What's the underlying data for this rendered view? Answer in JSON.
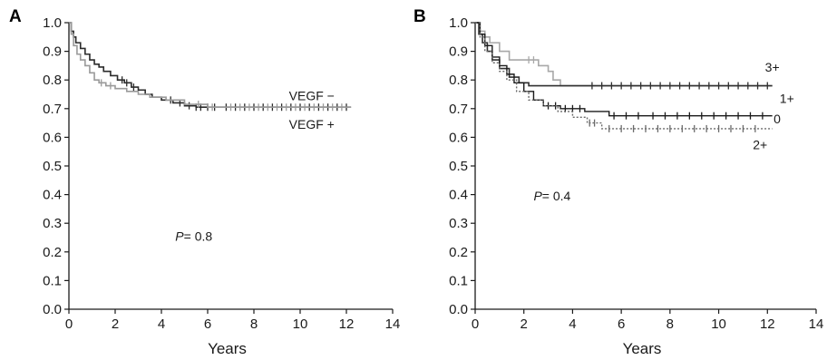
{
  "chart_data": [
    {
      "type": "line",
      "panel_label": "A",
      "xlabel": "Years",
      "ylabel": "",
      "xlim": [
        0,
        14
      ],
      "ylim": [
        0,
        1.0
      ],
      "xticks": [
        0,
        2,
        4,
        6,
        8,
        10,
        12,
        14
      ],
      "yticks": [
        0.0,
        0.1,
        0.2,
        0.3,
        0.4,
        0.5,
        0.6,
        0.7,
        0.8,
        0.9,
        1.0
      ],
      "ytick_labels": [
        "0.0",
        "0.1",
        "0.2",
        "0.3",
        "0.4",
        "0.5",
        "0.6",
        "0.7",
        "0.8",
        "0.9",
        "1.0"
      ],
      "grid": false,
      "annotation": {
        "p_label": "P",
        "p_value": "= 0.8",
        "x": 4.6,
        "y": 0.255
      },
      "series": [
        {
          "name": "VEGF −",
          "color": "#2b2b2b",
          "width": 1.6,
          "dash": "",
          "label_at": [
            10.5,
            0.745
          ],
          "steps": [
            [
              0,
              1.0
            ],
            [
              0.1,
              0.97
            ],
            [
              0.2,
              0.95
            ],
            [
              0.3,
              0.93
            ],
            [
              0.5,
              0.91
            ],
            [
              0.7,
              0.89
            ],
            [
              0.9,
              0.87
            ],
            [
              1.1,
              0.855
            ],
            [
              1.3,
              0.845
            ],
            [
              1.5,
              0.83
            ],
            [
              1.8,
              0.815
            ],
            [
              2.1,
              0.8
            ],
            [
              2.4,
              0.79
            ],
            [
              2.7,
              0.775
            ],
            [
              3.0,
              0.765
            ],
            [
              3.3,
              0.75
            ],
            [
              3.6,
              0.74
            ],
            [
              4.0,
              0.73
            ],
            [
              4.5,
              0.72
            ],
            [
              5.0,
              0.71
            ],
            [
              5.5,
              0.705
            ],
            [
              12.2,
              0.705
            ]
          ],
          "censor_x": [
            2.3,
            2.5,
            2.8,
            4.4,
            4.8,
            5.2,
            5.5,
            5.7,
            6.0,
            6.3,
            6.8,
            7.2,
            7.6,
            8.0,
            8.4,
            8.8,
            9.2,
            9.6,
            10.0,
            10.4,
            10.8,
            11.2,
            11.6,
            12.0
          ]
        },
        {
          "name": "VEGF +",
          "color": "#9a9a9a",
          "width": 1.6,
          "dash": "",
          "label_at": [
            10.5,
            0.645
          ],
          "steps": [
            [
              0,
              1.0
            ],
            [
              0.1,
              0.96
            ],
            [
              0.2,
              0.92
            ],
            [
              0.35,
              0.89
            ],
            [
              0.5,
              0.87
            ],
            [
              0.7,
              0.85
            ],
            [
              0.9,
              0.825
            ],
            [
              1.1,
              0.8
            ],
            [
              1.3,
              0.79
            ],
            [
              1.6,
              0.78
            ],
            [
              2.0,
              0.77
            ],
            [
              2.5,
              0.76
            ],
            [
              3.0,
              0.75
            ],
            [
              3.5,
              0.74
            ],
            [
              4.2,
              0.73
            ],
            [
              5.0,
              0.715
            ],
            [
              6.0,
              0.705
            ],
            [
              12.2,
              0.705
            ]
          ],
          "censor_x": [
            1.4,
            1.8,
            5.6,
            6.2,
            7.0,
            7.4,
            7.8,
            8.2,
            8.6,
            9.0,
            9.4,
            9.8,
            10.2,
            10.6,
            11.0,
            11.4,
            11.8
          ]
        }
      ]
    },
    {
      "type": "line",
      "panel_label": "B",
      "xlabel": "Years",
      "ylabel": "",
      "xlim": [
        0,
        14
      ],
      "ylim": [
        0,
        1.0
      ],
      "xticks": [
        0,
        2,
        4,
        6,
        8,
        10,
        12,
        14
      ],
      "yticks": [
        0.0,
        0.1,
        0.2,
        0.3,
        0.4,
        0.5,
        0.6,
        0.7,
        0.8,
        0.9,
        1.0
      ],
      "ytick_labels": [
        "0.0",
        "0.1",
        "0.2",
        "0.3",
        "0.4",
        "0.5",
        "0.6",
        "0.7",
        "0.8",
        "0.9",
        "1.0"
      ],
      "grid": false,
      "annotation": {
        "p_label": "P",
        "p_value": "= 0.4",
        "x": 2.4,
        "y": 0.395
      },
      "series": [
        {
          "name": "3+",
          "color": "#a8a8a8",
          "width": 1.6,
          "dash": "",
          "label_at": [
            12.2,
            0.845
          ],
          "steps": [
            [
              0,
              1.0
            ],
            [
              0.2,
              0.97
            ],
            [
              0.4,
              0.95
            ],
            [
              0.6,
              0.93
            ],
            [
              1.0,
              0.9
            ],
            [
              1.4,
              0.87
            ],
            [
              2.0,
              0.87
            ],
            [
              2.6,
              0.85
            ],
            [
              3.0,
              0.83
            ],
            [
              3.2,
              0.8
            ],
            [
              3.5,
              0.78
            ],
            [
              12.2,
              0.78
            ]
          ],
          "censor_x": [
            2.2,
            2.4
          ]
        },
        {
          "name": "1+",
          "color": "#303030",
          "width": 1.6,
          "dash": "",
          "label_at": [
            12.8,
            0.735
          ],
          "steps": [
            [
              0,
              1.0
            ],
            [
              0.15,
              0.96
            ],
            [
              0.3,
              0.93
            ],
            [
              0.5,
              0.9
            ],
            [
              0.7,
              0.87
            ],
            [
              1.0,
              0.84
            ],
            [
              1.4,
              0.81
            ],
            [
              1.8,
              0.79
            ],
            [
              2.2,
              0.78
            ],
            [
              12.2,
              0.78
            ]
          ],
          "censor_x": [
            4.8,
            5.2,
            5.6,
            6.0,
            6.4,
            6.8,
            7.2,
            7.6,
            8.0,
            8.4,
            8.8,
            9.2,
            9.6,
            10.0,
            10.4,
            10.8,
            11.2,
            11.6,
            12.0
          ]
        },
        {
          "name": "0",
          "color": "#1a1a1a",
          "width": 1.4,
          "dash": "",
          "label_at": [
            12.4,
            0.665
          ],
          "steps": [
            [
              0,
              1.0
            ],
            [
              0.2,
              0.96
            ],
            [
              0.4,
              0.92
            ],
            [
              0.7,
              0.88
            ],
            [
              1.0,
              0.85
            ],
            [
              1.3,
              0.82
            ],
            [
              1.6,
              0.79
            ],
            [
              2.0,
              0.76
            ],
            [
              2.4,
              0.73
            ],
            [
              2.8,
              0.71
            ],
            [
              3.5,
              0.7
            ],
            [
              4.5,
              0.69
            ],
            [
              5.5,
              0.675
            ],
            [
              12.2,
              0.675
            ]
          ],
          "censor_x": [
            3.0,
            3.3,
            3.7,
            4.0,
            4.3,
            5.7,
            6.2,
            6.7,
            7.3,
            7.8,
            8.3,
            8.8,
            9.3,
            9.8,
            10.3,
            10.8,
            11.3,
            11.8
          ]
        },
        {
          "name": "2+",
          "color": "#6a6a6a",
          "width": 1.4,
          "dash": "2,2",
          "label_at": [
            11.7,
            0.575
          ],
          "steps": [
            [
              0,
              1.0
            ],
            [
              0.2,
              0.95
            ],
            [
              0.4,
              0.9
            ],
            [
              0.7,
              0.86
            ],
            [
              1.0,
              0.83
            ],
            [
              1.3,
              0.8
            ],
            [
              1.7,
              0.76
            ],
            [
              2.2,
              0.73
            ],
            [
              2.8,
              0.71
            ],
            [
              3.4,
              0.69
            ],
            [
              4.0,
              0.67
            ],
            [
              4.6,
              0.65
            ],
            [
              5.2,
              0.63
            ],
            [
              12.2,
              0.63
            ]
          ],
          "censor_x": [
            4.7,
            4.9,
            5.5,
            6.0,
            6.5,
            7.0,
            7.5,
            8.0,
            8.5,
            9.0,
            9.5,
            10.0,
            10.5,
            11.0,
            11.5
          ]
        }
      ]
    }
  ]
}
